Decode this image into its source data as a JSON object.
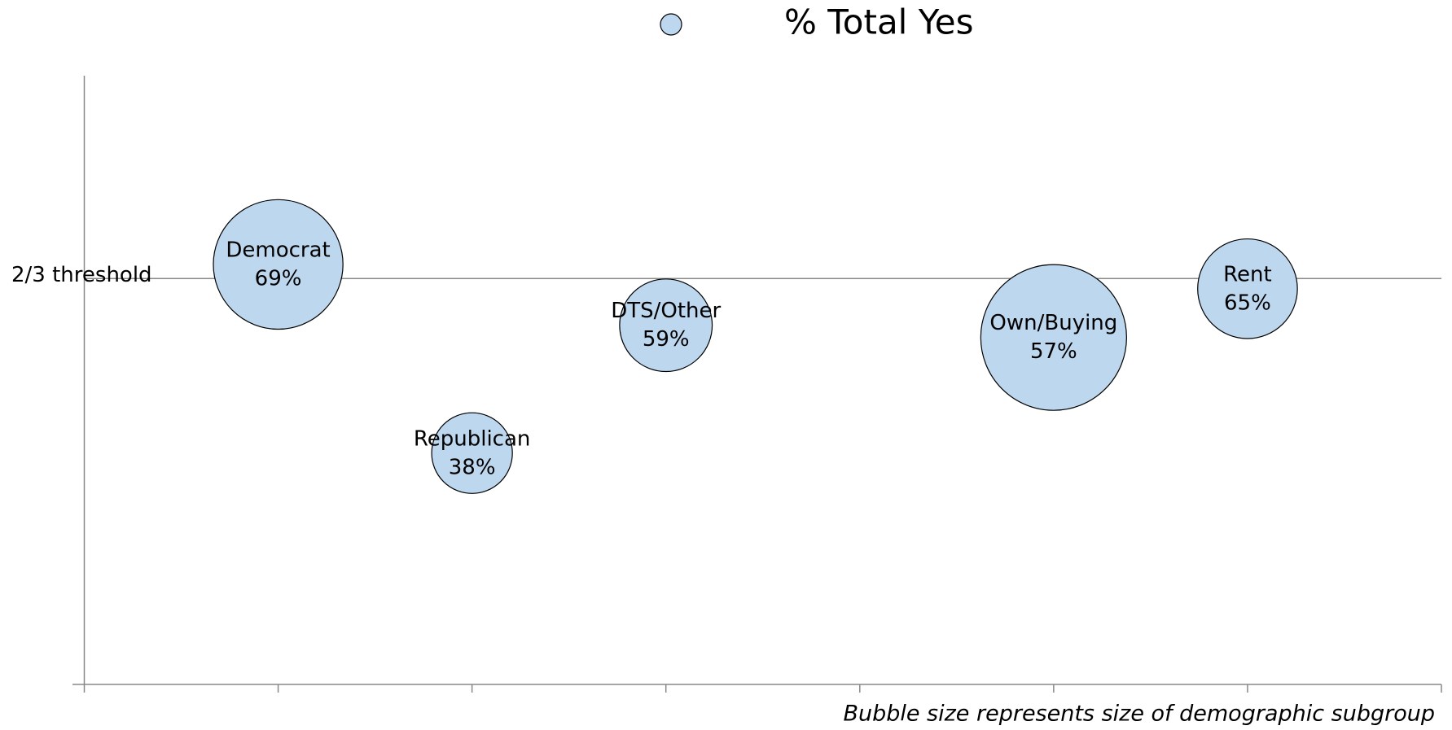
{
  "chart_data": {
    "type": "bubble",
    "series": [
      {
        "name": "% Total Yes",
        "color": "#bdd7ee",
        "labels": [
          "Democrat",
          "Republican",
          "DTS/Other",
          "Own/Buying",
          "Rent"
        ],
        "x": [
          1,
          2,
          3,
          5,
          6
        ],
        "values": [
          69,
          38,
          59,
          57,
          65
        ],
        "value_labels": [
          "69%",
          "38%",
          "59%",
          "57%",
          "65%"
        ],
        "sizes": [
          49,
          19,
          25,
          62,
          29
        ]
      }
    ],
    "xlim": [
      0,
      7
    ],
    "xticks": [
      0,
      1,
      2,
      3,
      4,
      5,
      6,
      7
    ],
    "ylim": [
      0,
      100
    ],
    "reference_line": {
      "label": "2/3 threshold",
      "value": 66.67
    },
    "note": "Bubble size represents size of demographic subgroup"
  }
}
